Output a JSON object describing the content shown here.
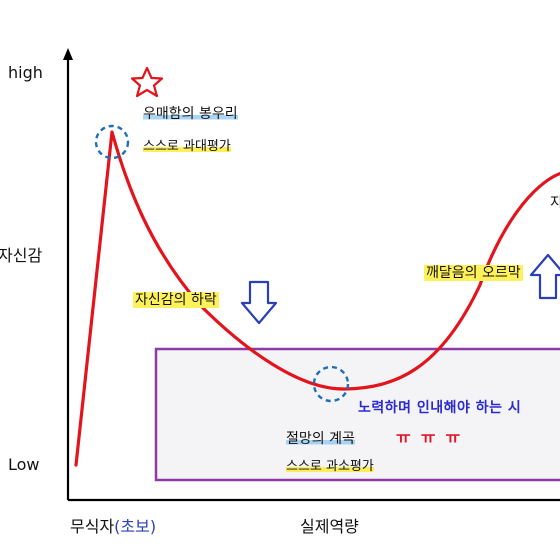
{
  "axes": {
    "y_high": "high",
    "y_title": "자신감",
    "y_low": "Low",
    "x_start_prefix": "무식자",
    "x_start_paren": "(초보)",
    "x_title": "실제역량"
  },
  "annotations": {
    "peak_title": "우매함의 봉우리",
    "peak_sub": "스스로 과대평가",
    "decline": "자신감의 하락",
    "valley_title": "절망의 계곡",
    "valley_sub": "스스로 과소평가",
    "rise": "깨달음의 오르막",
    "cut_char": "지",
    "box_text": "노력하며 인내해야 하는 시",
    "box_tt": "ㅠㅠㅠ"
  },
  "colors": {
    "curve": "#e3141c",
    "circle": "#1f6fb5",
    "arrow_fill": "#ffffff",
    "arrow_stroke": "#2a3fb8",
    "box_border": "#8e3aa6",
    "star": "#e3141c",
    "highlight": "#fff15a"
  },
  "icons": [
    "star-icon",
    "down-arrow-icon",
    "up-arrow-icon"
  ]
}
